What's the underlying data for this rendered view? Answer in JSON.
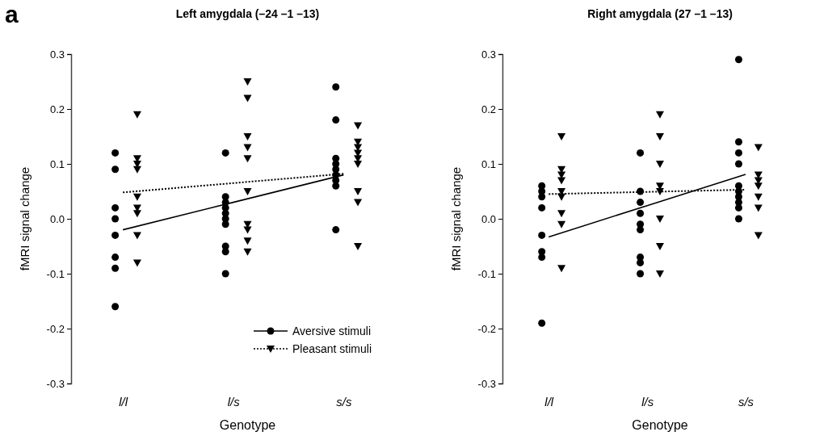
{
  "chart_data": [
    {
      "type": "scatter",
      "title": "Left amygdala (–24 –1 –13)",
      "xlabel": "Genotype",
      "ylabel": "fMRI signal change",
      "annotations": [
        "a"
      ],
      "categories": [
        "l/l",
        "l/s",
        "s/s"
      ],
      "ylim": [
        -0.3,
        0.3
      ],
      "yticks": [
        {
          "value": -0.3,
          "label": "-0.3"
        },
        {
          "value": -0.2,
          "label": "-0.2"
        },
        {
          "value": -0.1,
          "label": "-0.1"
        },
        {
          "value": 0,
          "label": "0.0"
        },
        0.1,
        0.2,
        0.3
      ],
      "grid": false,
      "legend": "bottom right",
      "series": [
        {
          "name": "Aversive stimuli",
          "color": "#000000",
          "marker": "circle",
          "x": [
            "l/l",
            "l/l",
            "l/l",
            "l/l",
            "l/l",
            "l/l",
            "l/l",
            "l/l",
            "l/s",
            "l/s",
            "l/s",
            "l/s",
            "l/s",
            "l/s",
            "l/s",
            "l/s",
            "l/s",
            "l/s",
            "s/s",
            "s/s",
            "s/s",
            "s/s",
            "s/s",
            "s/s",
            "s/s",
            "s/s",
            "s/s"
          ],
          "values": [
            0.12,
            0.09,
            0.02,
            0.0,
            -0.03,
            -0.07,
            -0.09,
            -0.16,
            0.12,
            0.04,
            0.03,
            0.02,
            0.01,
            0.0,
            -0.01,
            -0.05,
            -0.06,
            -0.1,
            0.24,
            0.18,
            0.11,
            0.1,
            0.09,
            0.08,
            0.07,
            0.06,
            -0.02
          ]
        },
        {
          "name": "Pleasant stimuli",
          "color": "#000000",
          "marker": "triangle",
          "x": [
            "l/l",
            "l/l",
            "l/l",
            "l/l",
            "l/l",
            "l/l",
            "l/l",
            "l/l",
            "l/l",
            "l/s",
            "l/s",
            "l/s",
            "l/s",
            "l/s",
            "l/s",
            "l/s",
            "l/s",
            "l/s",
            "l/s",
            "s/s",
            "s/s",
            "s/s",
            "s/s",
            "s/s",
            "s/s",
            "s/s",
            "s/s",
            "s/s"
          ],
          "values": [
            0.19,
            0.11,
            0.1,
            0.09,
            0.04,
            0.02,
            0.01,
            -0.03,
            -0.08,
            0.25,
            0.22,
            0.15,
            0.13,
            0.11,
            0.05,
            -0.01,
            -0.02,
            -0.04,
            -0.06,
            0.17,
            0.14,
            0.13,
            0.12,
            0.11,
            0.1,
            0.05,
            0.03,
            -0.05
          ]
        },
        {
          "type": "line",
          "color": "#000000",
          "line_style": "solid",
          "x": [
            "l/l",
            "l/s",
            "s/s"
          ],
          "values": [
            -0.02,
            0.03,
            0.08
          ]
        },
        {
          "type": "line",
          "color": "#000000",
          "line_style": "dotted",
          "x": [
            "l/l",
            "l/s",
            "s/s"
          ],
          "values": [
            0.048,
            0.065,
            0.082
          ]
        }
      ]
    },
    {
      "type": "scatter",
      "title": "Right amygdala (27 –1 –13)",
      "xlabel": "Genotype",
      "ylabel": "fMRI signal change",
      "categories": [
        "l/l",
        "l/s",
        "s/s"
      ],
      "ylim": [
        -0.3,
        0.3
      ],
      "yticks": [
        {
          "value": -0.3,
          "label": "-0.3"
        },
        {
          "value": -0.2,
          "label": "-0.2"
        },
        {
          "value": -0.1,
          "label": "-0.1"
        },
        {
          "value": 0,
          "label": "0.0"
        },
        0.1,
        0.2,
        0.3
      ],
      "grid": false,
      "legend": false,
      "series": [
        {
          "color": "#000000",
          "marker": "circle",
          "x": [
            "l/l",
            "l/l",
            "l/l",
            "l/l",
            "l/l",
            "l/l",
            "l/l",
            "l/l",
            "l/s",
            "l/s",
            "l/s",
            "l/s",
            "l/s",
            "l/s",
            "l/s",
            "l/s",
            "l/s",
            "s/s",
            "s/s",
            "s/s",
            "s/s",
            "s/s",
            "s/s",
            "s/s",
            "s/s",
            "s/s",
            "s/s"
          ],
          "values": [
            0.06,
            0.05,
            0.04,
            0.02,
            -0.03,
            -0.06,
            -0.07,
            -0.19,
            0.12,
            0.05,
            0.03,
            0.01,
            -0.01,
            -0.02,
            -0.07,
            -0.08,
            -0.1,
            0.29,
            0.14,
            0.12,
            0.1,
            0.06,
            0.05,
            0.04,
            0.03,
            0.02,
            0.0
          ]
        },
        {
          "color": "#000000",
          "marker": "triangle",
          "x": [
            "l/l",
            "l/l",
            "l/l",
            "l/l",
            "l/l",
            "l/l",
            "l/l",
            "l/l",
            "l/l",
            "l/s",
            "l/s",
            "l/s",
            "l/s",
            "l/s",
            "l/s",
            "l/s",
            "l/s",
            "s/s",
            "s/s",
            "s/s",
            "s/s",
            "s/s",
            "s/s",
            "s/s"
          ],
          "values": [
            0.15,
            0.09,
            0.08,
            0.07,
            0.05,
            0.04,
            0.01,
            -0.01,
            -0.09,
            0.19,
            0.15,
            0.1,
            0.06,
            0.05,
            0.0,
            -0.05,
            -0.1,
            0.13,
            0.08,
            0.07,
            0.06,
            0.04,
            0.02,
            -0.03
          ]
        },
        {
          "type": "line",
          "color": "#000000",
          "line_style": "solid",
          "x": [
            "l/l",
            "l/s",
            "s/s"
          ],
          "values": [
            -0.033,
            0.024,
            0.081
          ]
        },
        {
          "type": "line",
          "color": "#000000",
          "line_style": "dotted",
          "x": [
            "l/l",
            "l/s",
            "s/s"
          ],
          "values": [
            0.045,
            0.049,
            0.053
          ]
        }
      ]
    }
  ]
}
